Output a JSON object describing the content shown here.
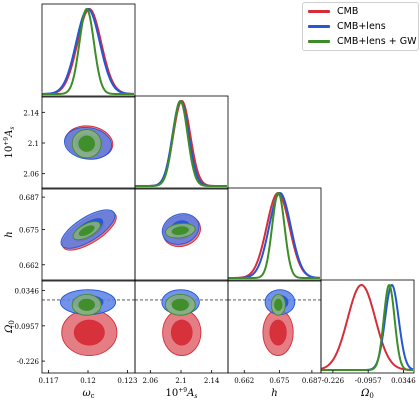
{
  "chart_data": {
    "type": "corner",
    "parameters": [
      {
        "label": "ω",
        "subscript": "c",
        "range": [
          0.1165,
          0.1235
        ],
        "ticks": [
          "0.117",
          "0.12",
          "0.123"
        ],
        "tick_values": [
          0.117,
          0.12,
          0.123
        ]
      },
      {
        "label": "10",
        "superscript": "+9",
        "suffix": "A",
        "suffix_sub": "s",
        "range": [
          2.04,
          2.16
        ],
        "ticks": [
          "2.06",
          "2.1",
          "2.14"
        ],
        "tick_values": [
          2.06,
          2.1,
          2.14
        ]
      },
      {
        "label": "h",
        "range": [
          0.656,
          0.69
        ],
        "ticks": [
          "0.662",
          "0.675",
          "0.687"
        ],
        "tick_values": [
          0.662,
          0.675,
          0.687
        ]
      },
      {
        "label": "Ω",
        "subscript": "0",
        "range": [
          -0.27,
          0.07
        ],
        "ticks": [
          "-0.226",
          "-0.0957",
          "0.0346"
        ],
        "tick_values": [
          -0.226,
          -0.0957,
          0.0346
        ]
      }
    ],
    "reference_line": {
      "parameter": 3,
      "value": 0.0
    },
    "series": [
      {
        "name": "CMB",
        "color": "#d62d38",
        "fill": "#e06670",
        "mean": [
          0.1201,
          2.101,
          0.6745,
          -0.1204
        ],
        "sd": [
          0.0009,
          0.011,
          0.0042,
          0.051
        ],
        "contours": [
          {
            "params": [
              0,
              1
            ],
            "angle_deg": 10,
            "half_widths": [
              0.0018,
              0.021
            ]
          },
          {
            "params": [
              0,
              2
            ],
            "angle_deg": -32,
            "half_widths": [
              0.00235,
              0.0044
            ]
          },
          {
            "params": [
              1,
              2
            ],
            "angle_deg": -20,
            "half_widths": [
              0.025,
              0.0056
            ]
          },
          {
            "params": [
              0,
              3
            ],
            "angle_deg": 0,
            "half_widths": [
              0.0021,
              0.085
            ]
          },
          {
            "params": [
              1,
              3
            ],
            "angle_deg": 0,
            "half_widths": [
              0.025,
              0.085
            ]
          },
          {
            "params": [
              2,
              3
            ],
            "angle_deg": 0,
            "half_widths": [
              0.0056,
              0.085
            ]
          }
        ]
      },
      {
        "name": "CMB+lens",
        "color": "#2556d6",
        "fill": "#5a7fe5",
        "mean": [
          0.12,
          2.0995,
          0.6752,
          -0.0081
        ],
        "sd": [
          0.0009,
          0.0105,
          0.004,
          0.025
        ],
        "contours": [
          {
            "params": [
              0,
              1
            ],
            "angle_deg": 8,
            "half_widths": [
              0.0018,
              0.0205
            ]
          },
          {
            "params": [
              0,
              2
            ],
            "angle_deg": -32,
            "half_widths": [
              0.00235,
              0.0044
            ]
          },
          {
            "params": [
              1,
              2
            ],
            "angle_deg": -20,
            "half_widths": [
              0.0245,
              0.0055
            ]
          },
          {
            "params": [
              0,
              3
            ],
            "angle_deg": 0,
            "half_widths": [
              0.0021,
              0.046
            ]
          },
          {
            "params": [
              1,
              3
            ],
            "angle_deg": 0,
            "half_widths": [
              0.0245,
              0.046
            ]
          },
          {
            "params": [
              2,
              3
            ],
            "angle_deg": 0,
            "half_widths": [
              0.0055,
              0.046
            ]
          }
        ]
      },
      {
        "name": "CMB+lens + GW",
        "color": "#3d8d27",
        "fill": "#8eb57a",
        "mean": [
          0.1199,
          2.0991,
          0.6746,
          -0.0181
        ],
        "sd": [
          0.00055,
          0.0095,
          0.0023,
          0.02
        ],
        "contours": [
          {
            "params": [
              0,
              1
            ],
            "angle_deg": 5,
            "half_widths": [
              0.0011,
              0.0185
            ]
          },
          {
            "params": [
              0,
              2
            ],
            "angle_deg": -28,
            "half_widths": [
              0.00115,
              0.0024
            ]
          },
          {
            "params": [
              1,
              2
            ],
            "angle_deg": -8,
            "half_widths": [
              0.0195,
              0.0026
            ]
          },
          {
            "params": [
              0,
              3
            ],
            "angle_deg": 0,
            "half_widths": [
              0.0011,
              0.0385
            ]
          },
          {
            "params": [
              1,
              3
            ],
            "angle_deg": 0,
            "half_widths": [
              0.0195,
              0.0385
            ]
          },
          {
            "params": [
              2,
              3
            ],
            "angle_deg": 0,
            "half_widths": [
              0.0026,
              0.0385
            ]
          }
        ]
      }
    ],
    "legend_position": "top-right"
  }
}
